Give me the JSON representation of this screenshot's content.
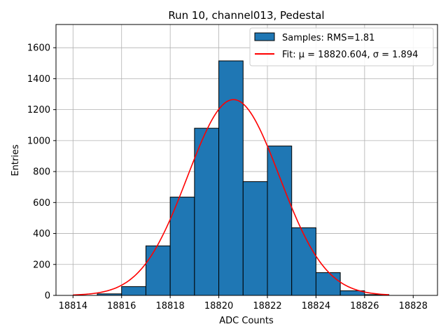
{
  "chart_data": {
    "type": "bar",
    "title": "Run 10, channel013, Pedestal",
    "xlabel": "ADC Counts",
    "ylabel": "Entries",
    "xlim": [
      18813.3,
      18829.0
    ],
    "ylim": [
      0,
      1750
    ],
    "xticks": [
      18814,
      18816,
      18818,
      18820,
      18822,
      18824,
      18826,
      18828
    ],
    "yticks": [
      0,
      200,
      400,
      600,
      800,
      1000,
      1200,
      1400,
      1600
    ],
    "grid": true,
    "legend_position": "top-right",
    "histogram": {
      "name": "Samples: RMS=1.81",
      "color": "#1f77b4",
      "edgecolor": "#000000",
      "bin_edges": [
        18815,
        18816,
        18817,
        18818,
        18819,
        18820,
        18821,
        18822,
        18823,
        18824,
        18825,
        18826,
        18827
      ],
      "counts": [
        10,
        57,
        320,
        635,
        1080,
        1515,
        735,
        965,
        437,
        147,
        30,
        5
      ]
    },
    "fit": {
      "name": "Fit: μ = 18820.604, σ = 1.894",
      "color": "#ff0000",
      "mu": 18820.604,
      "sigma": 1.894,
      "amplitude": 1265,
      "x_range": [
        18814,
        18827
      ]
    }
  }
}
